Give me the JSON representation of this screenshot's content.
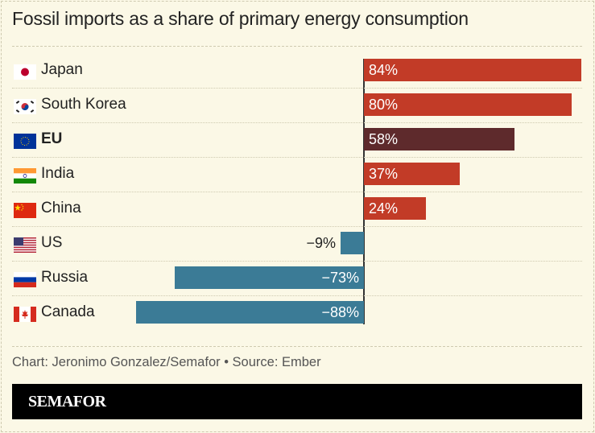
{
  "chart_data": {
    "type": "bar",
    "orientation": "horizontal",
    "title": "Fossil imports as a share of primary energy consumption",
    "categories": [
      "Japan",
      "South Korea",
      "EU",
      "India",
      "China",
      "US",
      "Russia",
      "Canada"
    ],
    "values": [
      84,
      80,
      58,
      37,
      24,
      -9,
      -73,
      -88
    ],
    "value_labels": [
      "84%",
      "80%",
      "58%",
      "37%",
      "24%",
      "−9%",
      "−73%",
      "−88%"
    ],
    "flags": [
      "japan-flag",
      "south-korea-flag",
      "eu-flag",
      "india-flag",
      "china-flag",
      "us-flag",
      "russia-flag",
      "canada-flag"
    ],
    "highlight": "EU",
    "xlim": [
      -90,
      86
    ],
    "grid": false,
    "colors": {
      "positive": "#c23b27",
      "highlight": "#5e2a2c",
      "negative": "#3b7b96"
    }
  },
  "footer": {
    "credit": "Chart: Jeronimo Gonzalez/Semafor • Source: Ember",
    "brand": "SEMAFOR"
  }
}
